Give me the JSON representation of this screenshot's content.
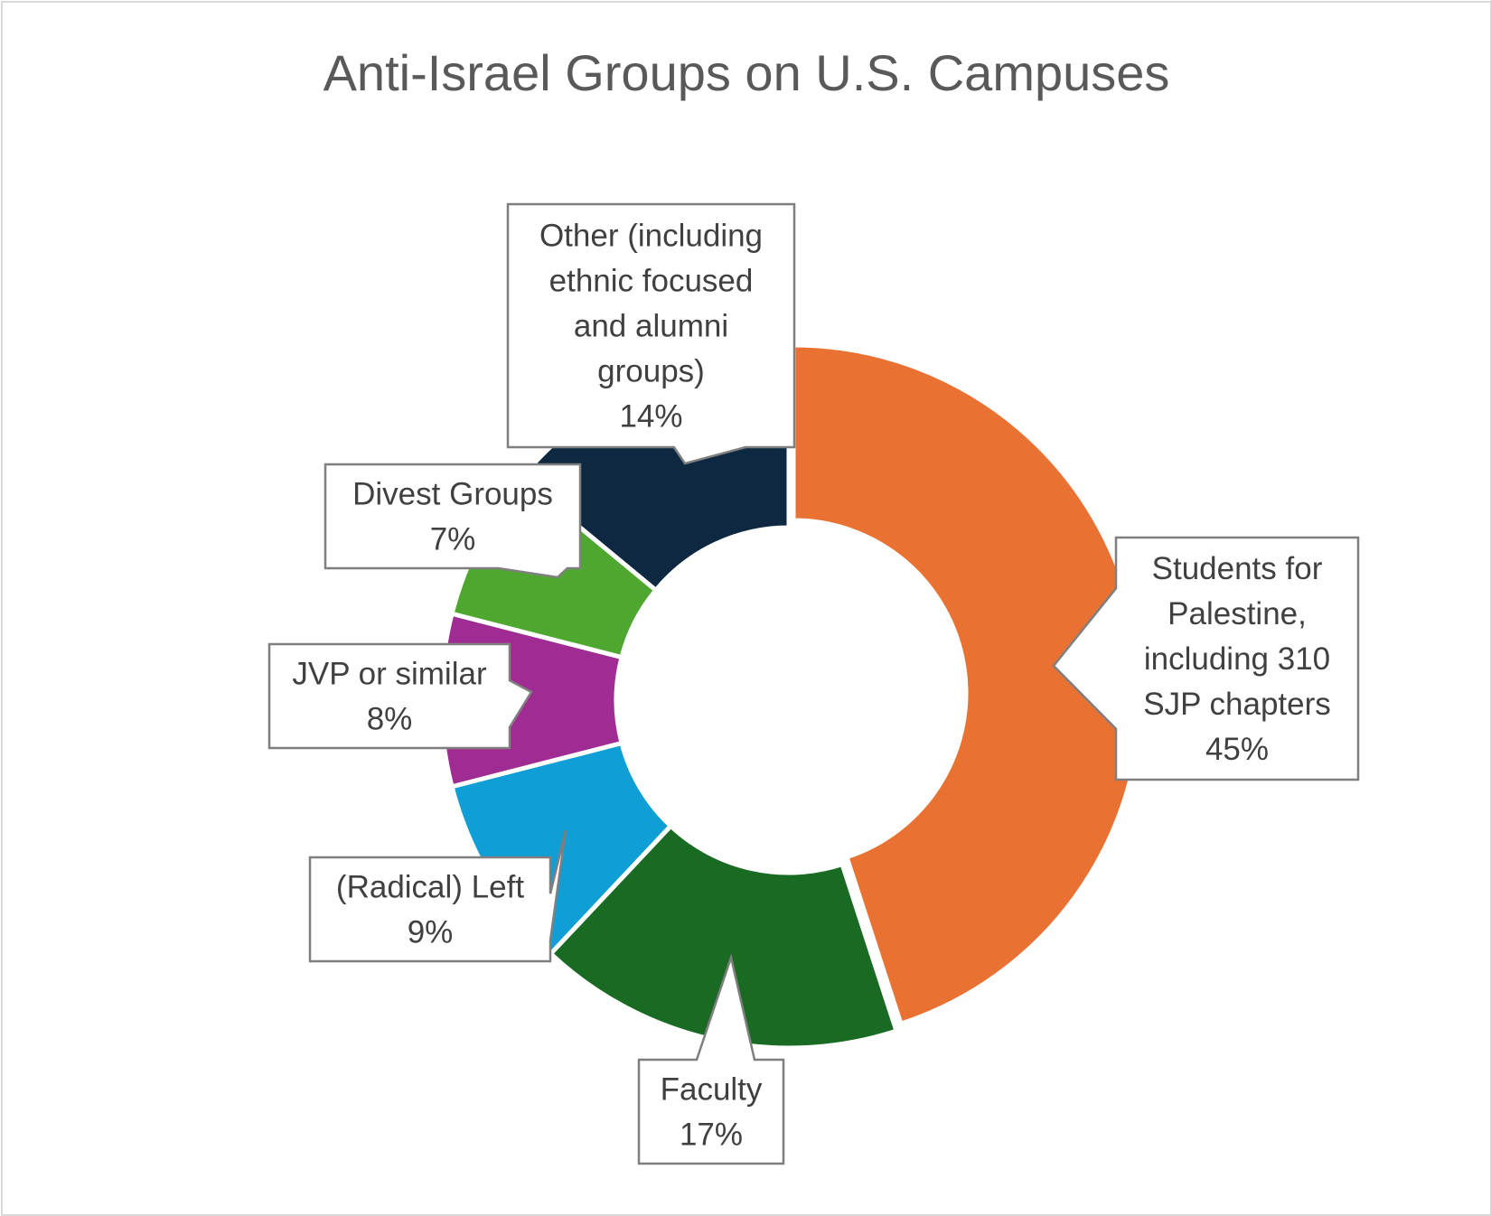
{
  "chart_data": {
    "type": "pie",
    "title": "Anti-Israel Groups on U.S. Campuses",
    "slices": [
      {
        "label": "Students for Palestine, including 310 SJP chapters",
        "label_lines": [
          "Students for",
          "Palestine,",
          "including 310",
          "SJP chapters"
        ],
        "value": 45,
        "value_label": "45%",
        "color": "#E97132"
      },
      {
        "label": "Faculty",
        "label_lines": [
          "Faculty"
        ],
        "value": 17,
        "value_label": "17%",
        "color": "#196B24"
      },
      {
        "label": "(Radical) Left",
        "label_lines": [
          "(Radical) Left"
        ],
        "value": 9,
        "value_label": "9%",
        "color": "#0F9ED5"
      },
      {
        "label": "JVP or similar",
        "label_lines": [
          "JVP or similar"
        ],
        "value": 8,
        "value_label": "8%",
        "color": "#A02B93"
      },
      {
        "label": "Divest Groups",
        "label_lines": [
          "Divest Groups"
        ],
        "value": 7,
        "value_label": "7%",
        "color": "#4EA72E"
      },
      {
        "label": "Other (including ethnic focused and alumni groups)",
        "label_lines": [
          "Other (including",
          "ethnic focused",
          "and alumni",
          "groups)"
        ],
        "value": 14,
        "value_label": "14%",
        "color": "#0E2841"
      }
    ]
  }
}
